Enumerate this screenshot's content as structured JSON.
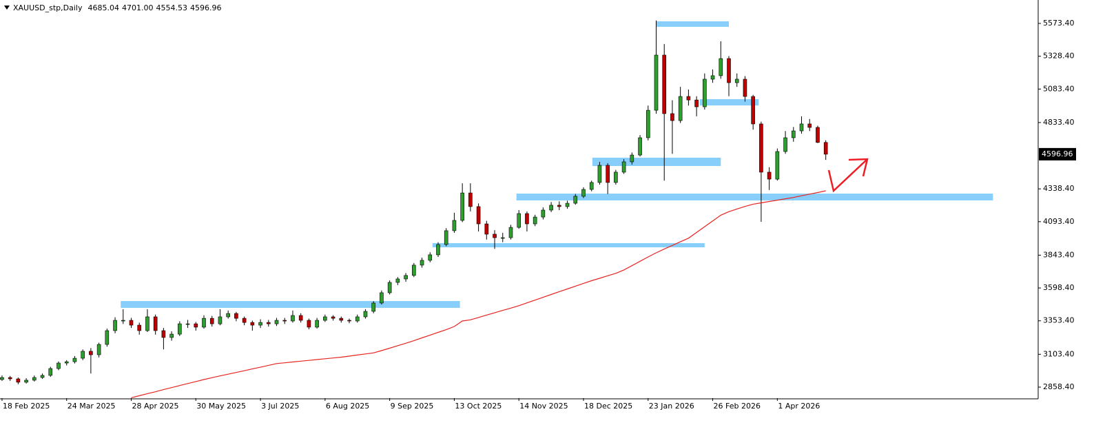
{
  "chart_data": {
    "type": "candlestick",
    "title": "XAUUSD_stp,Daily",
    "ohlc_labels": [
      "4685.04",
      "4701.00",
      "4554.53",
      "4596.96"
    ],
    "categories": [
      "18 Feb 2025",
      null,
      null,
      null,
      null,
      null,
      null,
      null,
      "24 Mar 2025",
      null,
      null,
      null,
      null,
      null,
      null,
      null,
      "28 Apr 2025",
      null,
      null,
      null,
      null,
      null,
      null,
      null,
      "30 May 2025",
      null,
      null,
      null,
      null,
      null,
      null,
      null,
      "3 Jul 2025",
      null,
      null,
      null,
      null,
      null,
      null,
      null,
      "6 Aug 2025",
      null,
      null,
      null,
      null,
      null,
      null,
      null,
      "9 Sep 2025",
      null,
      null,
      null,
      null,
      null,
      null,
      null,
      "13 Oct 2025",
      null,
      null,
      null,
      null,
      null,
      null,
      null,
      "14 Nov 2025",
      null,
      null,
      null,
      null,
      null,
      null,
      null,
      "18 Dec 2025",
      null,
      null,
      null,
      null,
      null,
      null,
      null,
      "23 Jan 2026",
      null,
      null,
      null,
      null,
      null,
      null,
      null,
      "26 Feb 2026",
      null,
      null,
      null,
      null,
      null,
      null,
      null,
      "1 Apr 2026",
      null,
      null,
      null,
      null,
      null,
      null
    ],
    "candles": {
      "bull_color": "#2e9e2e",
      "bear_color": "#c00000",
      "wick_color": "#000000",
      "open": [
        2915,
        2930,
        2920,
        2895,
        2910,
        2930,
        2946,
        2997,
        3038,
        3048,
        3074,
        3126,
        3100,
        3177,
        3280,
        3357,
        3357,
        3321,
        3280,
        3383,
        3280,
        3229,
        3254,
        3331,
        3331,
        3306,
        3372,
        3331,
        3383,
        3408,
        3372,
        3341,
        3321,
        3341,
        3331,
        3357,
        3352,
        3393,
        3357,
        3306,
        3357,
        3383,
        3372,
        3357,
        3352,
        3383,
        3424,
        3486,
        3563,
        3640,
        3666,
        3692,
        3769,
        3805,
        3846,
        3923,
        4026,
        4103,
        4308,
        4206,
        4077,
        4000,
        3974,
        3974,
        4051,
        4154,
        4077,
        4128,
        4180,
        4216,
        4206,
        4231,
        4283,
        4334,
        4386,
        4514,
        4386,
        4463,
        4540,
        4591,
        4720,
        4925,
        5337,
        4900,
        4848,
        5028,
        5002,
        4951,
        5157,
        5183,
        5311,
        5131,
        5157,
        5028,
        4823,
        4463,
        4411,
        4617,
        4720,
        4771,
        4823,
        4797,
        4685.04
      ],
      "high": [
        2945,
        2942,
        2930,
        2925,
        2945,
        2960,
        3010,
        3050,
        3060,
        3090,
        3140,
        3150,
        3190,
        3295,
        3380,
        3440,
        3375,
        3340,
        3440,
        3400,
        3300,
        3275,
        3350,
        3360,
        3345,
        3395,
        3390,
        3440,
        3430,
        3420,
        3385,
        3355,
        3365,
        3360,
        3375,
        3375,
        3430,
        3410,
        3370,
        3375,
        3400,
        3395,
        3385,
        3370,
        3400,
        3440,
        3500,
        3580,
        3655,
        3680,
        3710,
        3785,
        3825,
        3865,
        3940,
        4045,
        4160,
        4380,
        4380,
        4230,
        4100,
        4030,
        4010,
        4070,
        4180,
        4170,
        4145,
        4200,
        4240,
        4245,
        4250,
        4300,
        4350,
        4400,
        4540,
        4530,
        4480,
        4560,
        4610,
        4740,
        4960,
        5595,
        5420,
        5000,
        5100,
        5080,
        5030,
        5200,
        5230,
        5440,
        5330,
        5200,
        5180,
        5040,
        4840,
        4500,
        4640,
        4770,
        4800,
        4880,
        4860,
        4810,
        4701
      ],
      "low": [
        2905,
        2905,
        2880,
        2885,
        2900,
        2920,
        2935,
        2985,
        3020,
        3035,
        3060,
        2960,
        3080,
        3160,
        3260,
        3330,
        3300,
        3250,
        3270,
        3250,
        3140,
        3205,
        3240,
        3300,
        3280,
        3295,
        3310,
        3320,
        3370,
        3350,
        3320,
        3280,
        3300,
        3310,
        3315,
        3330,
        3340,
        3340,
        3290,
        3295,
        3345,
        3355,
        3340,
        3335,
        3340,
        3370,
        3410,
        3475,
        3550,
        3620,
        3645,
        3680,
        3750,
        3790,
        3830,
        3910,
        4010,
        4090,
        4170,
        4020,
        3960,
        3890,
        3940,
        3960,
        4040,
        4020,
        4060,
        4110,
        4165,
        4180,
        4190,
        4220,
        4270,
        4320,
        4370,
        4300,
        4370,
        4450,
        4520,
        4580,
        4700,
        4900,
        4400,
        4600,
        4830,
        4960,
        4880,
        4930,
        5130,
        5160,
        5030,
        5100,
        4990,
        4780,
        4092,
        4330,
        4400,
        4600,
        4690,
        4750,
        4770,
        4680,
        4554.53
      ],
      "close": [
        2930,
        2920,
        2895,
        2910,
        2930,
        2946,
        2997,
        3038,
        3048,
        3074,
        3126,
        3100,
        3177,
        3280,
        3357,
        3357,
        3321,
        3280,
        3383,
        3280,
        3229,
        3254,
        3331,
        3331,
        3306,
        3372,
        3331,
        3383,
        3408,
        3372,
        3341,
        3321,
        3341,
        3331,
        3357,
        3352,
        3393,
        3357,
        3306,
        3357,
        3383,
        3372,
        3357,
        3352,
        3383,
        3424,
        3486,
        3563,
        3640,
        3666,
        3692,
        3769,
        3805,
        3846,
        3923,
        4026,
        4103,
        4308,
        4206,
        4077,
        4000,
        3974,
        3974,
        4051,
        4154,
        4077,
        4128,
        4180,
        4216,
        4206,
        4231,
        4283,
        4334,
        4386,
        4514,
        4386,
        4463,
        4540,
        4591,
        4720,
        4925,
        5337,
        4900,
        4848,
        5028,
        5002,
        4951,
        5157,
        5183,
        5311,
        5131,
        5157,
        5028,
        4823,
        4463,
        4411,
        4617,
        4720,
        4771,
        4823,
        4797,
        4685.04,
        4596.96
      ]
    },
    "moving_average": {
      "color": "#e8231f",
      "values": [
        null,
        null,
        null,
        null,
        null,
        null,
        null,
        null,
        null,
        null,
        null,
        null,
        null,
        null,
        null,
        null,
        2779,
        2794,
        2809,
        2824,
        2840,
        2855,
        2870,
        2885,
        2900,
        2915,
        2929,
        2942,
        2955,
        2968,
        2981,
        2994,
        3007,
        3021,
        3034,
        3040,
        3046,
        3052,
        3058,
        3064,
        3070,
        3076,
        3082,
        3090,
        3098,
        3106,
        3114,
        3131,
        3149,
        3168,
        3186,
        3205,
        3226,
        3246,
        3267,
        3287,
        3311,
        3352,
        3361,
        3378,
        3396,
        3413,
        3431,
        3448,
        3466,
        3487,
        3508,
        3529,
        3550,
        3571,
        3591,
        3612,
        3633,
        3653,
        3671,
        3690,
        3708,
        3733,
        3765,
        3798,
        3830,
        3861,
        3889,
        3916,
        3944,
        3970,
        4013,
        4056,
        4099,
        4142,
        4168,
        4188,
        4207,
        4224,
        4234,
        4244,
        4254,
        4264,
        4274,
        4287,
        4299,
        4311,
        4324
      ]
    },
    "zones": {
      "color": "#87cefa",
      "items": [
        {
          "x": [
            14.7,
            56.7
          ],
          "y": [
            3450,
            3501
          ]
        },
        {
          "x": [
            53.3,
            87
          ],
          "y": [
            3902,
            3933
          ]
        },
        {
          "x": [
            63.7,
            122.7
          ],
          "y": [
            4252,
            4303
          ]
        },
        {
          "x": [
            73.1,
            89
          ],
          "y": [
            4509,
            4571
          ]
        },
        {
          "x": [
            86.4,
            93.7
          ],
          "y": [
            4961,
            5008
          ]
        },
        {
          "x": [
            81,
            90
          ],
          "y": [
            5548,
            5589
          ]
        }
      ]
    },
    "last_price": {
      "value": 4596.96,
      "label": "4596.96"
    },
    "xlim": [
      -0.25,
      128.3
    ],
    "ylim": [
      2776.1,
      5748.2
    ],
    "yticks": [
      {
        "value": 5573.4,
        "label": "5573.40"
      },
      {
        "value": 5328.4,
        "label": "5328.40"
      },
      {
        "value": 5083.4,
        "label": "5083.40"
      },
      {
        "value": 4833.4,
        "label": "4833.40"
      },
      {
        "value": 4338.4,
        "label": "4338.40"
      },
      {
        "value": 4093.4,
        "label": "4093.40"
      },
      {
        "value": 3843.4,
        "label": "3843.40"
      },
      {
        "value": 3598.4,
        "label": "3598.40"
      },
      {
        "value": 3353.4,
        "label": "3353.40"
      },
      {
        "value": 3103.4,
        "label": "3103.40"
      },
      {
        "value": 2858.4,
        "label": "2858.40"
      }
    ]
  }
}
